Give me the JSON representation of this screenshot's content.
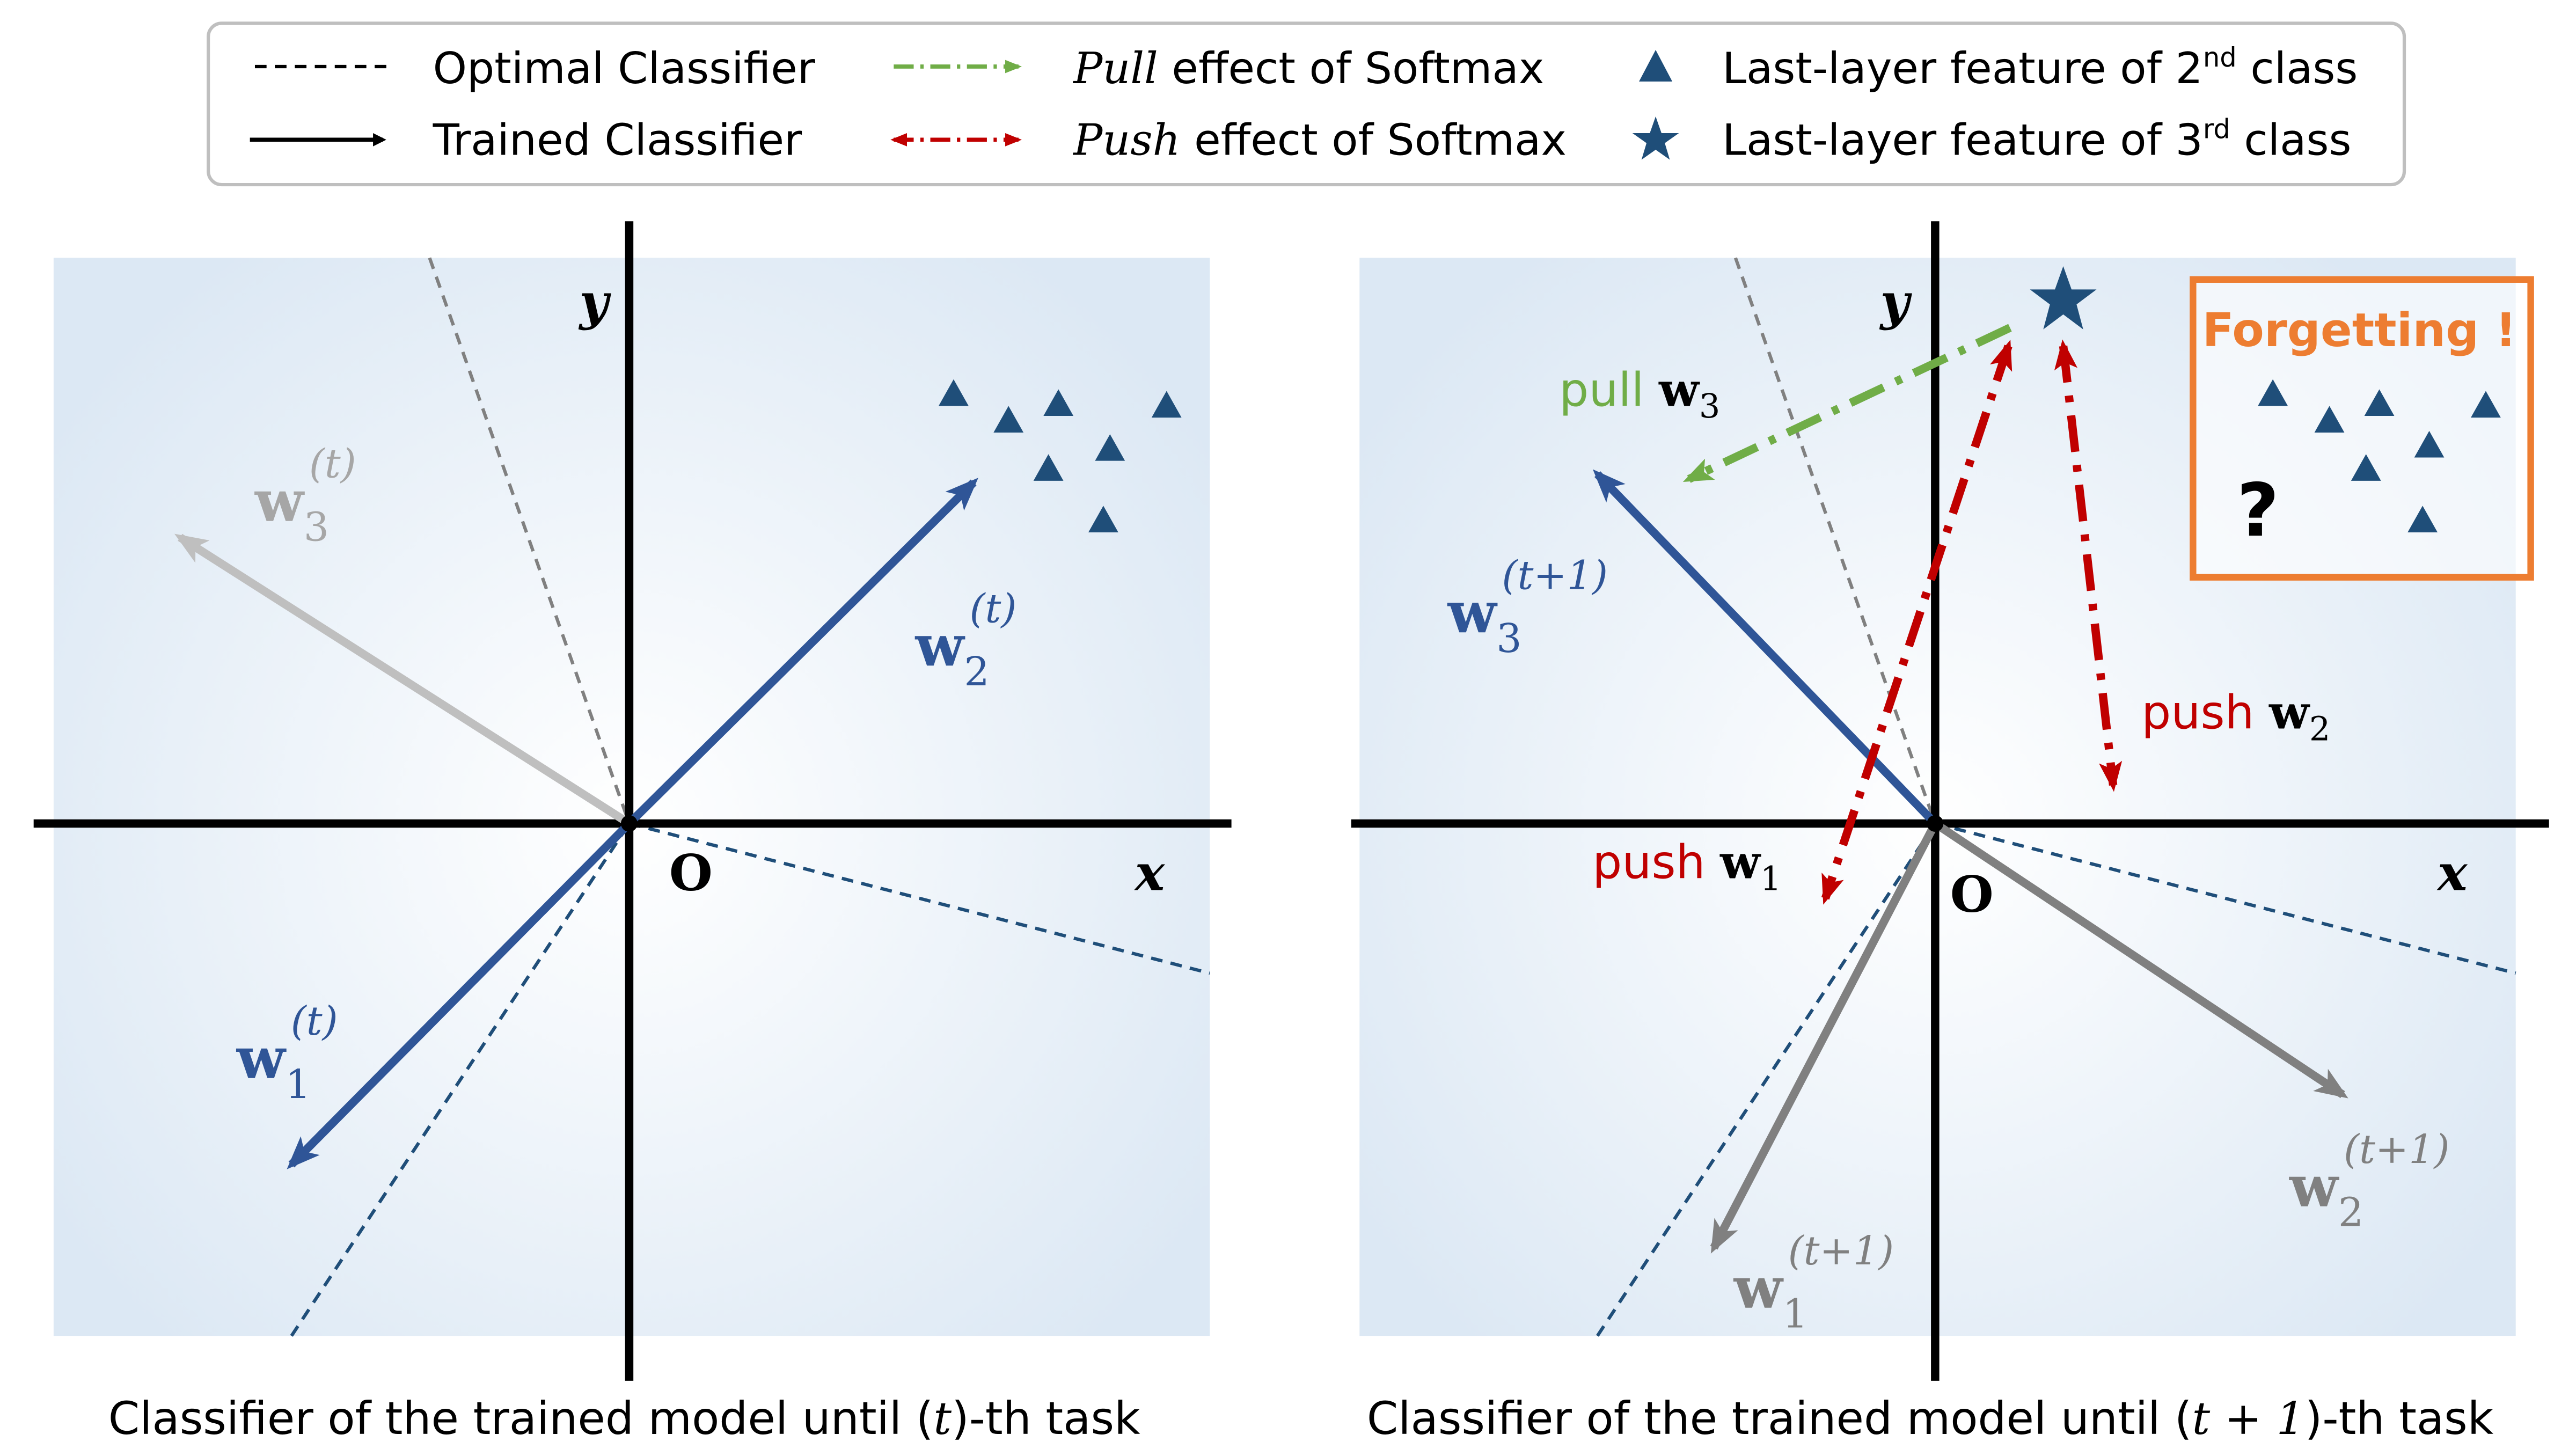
{
  "colors": {
    "blue": "#2F5597",
    "dark_blue": "#1F4E79",
    "green": "#70AD47",
    "red": "#C00000",
    "orange": "#ED7D31",
    "gray": "#808080",
    "light_gray": "#BFBFBF"
  },
  "legend": {
    "optimal": "Optimal Classifier",
    "trained": "Trained Classifier",
    "pull_em": "Pull",
    "pull_rest": " effect of Softmax",
    "push_em": "Push",
    "push_rest": " effect of Softmax",
    "feat2_pre": "Last-layer feature of 2",
    "feat2_sup": "nd",
    "feat2_post": " class",
    "feat3_pre": "Last-layer feature of 3",
    "feat3_sup": "rd",
    "feat3_post": " class"
  },
  "axes": {
    "x": "x",
    "y": "y",
    "origin": "O"
  },
  "left_panel": {
    "caption_pre": "Classifier of the trained model until (",
    "caption_var": "t",
    "caption_post": ")-th task",
    "w1": {
      "base": "w",
      "sub": "1",
      "sup": "(t)"
    },
    "w2": {
      "base": "w",
      "sub": "2",
      "sup": "(t)"
    },
    "w3": {
      "base": "w",
      "sub": "3",
      "sup": "(t)"
    }
  },
  "right_panel": {
    "caption_pre": "Classifier of the trained model until (",
    "caption_var": "t + 1",
    "caption_post": ")-th task",
    "w1": {
      "base": "w",
      "sub": "1",
      "sup": "(t+1)"
    },
    "w2": {
      "base": "w",
      "sub": "2",
      "sup": "(t+1)"
    },
    "w3": {
      "base": "w",
      "sub": "3",
      "sup": "(t+1)"
    },
    "pull_label": "pull ",
    "pull_w": "w",
    "pull_sub": "3",
    "push2_label": "push ",
    "push2_w": "w",
    "push2_sub": "2",
    "push1_label": "push ",
    "push1_w": "w",
    "push1_sub": "1",
    "forgetting": "Forgetting !",
    "question": "?"
  }
}
